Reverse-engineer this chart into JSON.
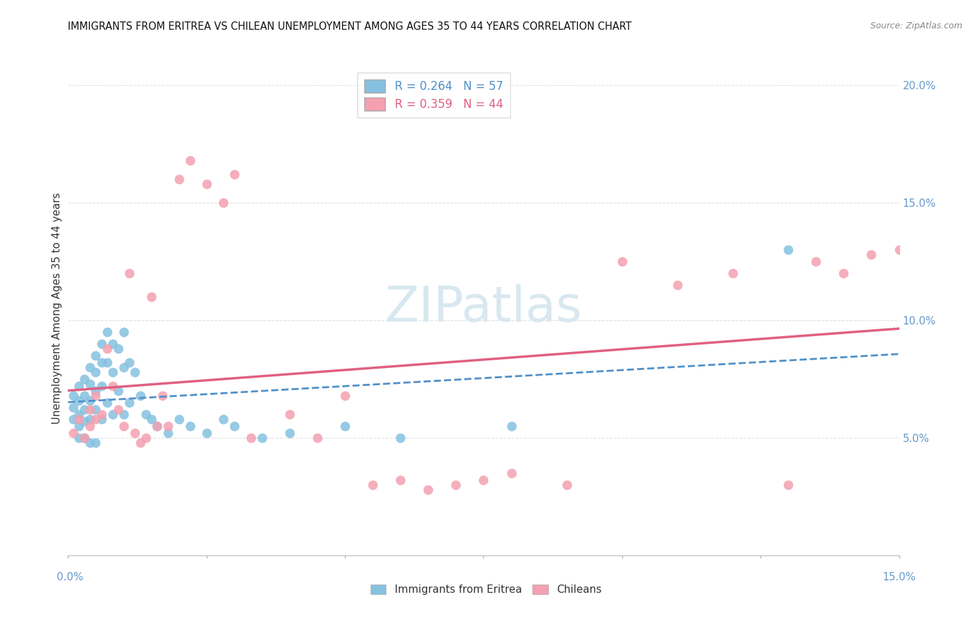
{
  "title": "IMMIGRANTS FROM ERITREA VS CHILEAN UNEMPLOYMENT AMONG AGES 35 TO 44 YEARS CORRELATION CHART",
  "source": "Source: ZipAtlas.com",
  "ylabel": "Unemployment Among Ages 35 to 44 years",
  "legend_label1": "Immigrants from Eritrea",
  "legend_label2": "Chileans",
  "r1": "0.264",
  "n1": "57",
  "r2": "0.359",
  "n2": "44",
  "color_blue": "#85c1e0",
  "color_pink": "#f4a0b0",
  "color_blue_line": "#5090c8",
  "color_pink_line": "#e06080",
  "color_grid": "#e0e0e8",
  "color_right_ticks": "#6699cc",
  "color_title": "#111111",
  "color_source": "#888888",
  "watermark_color": "#d8e8f0",
  "watermark_text": "ZIPatlas",
  "xlim": [
    0.0,
    0.15
  ],
  "ylim": [
    0.0,
    0.21
  ],
  "yticks": [
    0.05,
    0.1,
    0.15,
    0.2
  ],
  "ytick_labels": [
    "5.0%",
    "10.0%",
    "15.0%",
    "20.0%"
  ],
  "xtick_positions": [
    0.0,
    0.025,
    0.05,
    0.075,
    0.1,
    0.125,
    0.15
  ],
  "eritrea_x": [
    0.001,
    0.001,
    0.001,
    0.002,
    0.002,
    0.002,
    0.002,
    0.002,
    0.003,
    0.003,
    0.003,
    0.003,
    0.003,
    0.004,
    0.004,
    0.004,
    0.004,
    0.004,
    0.005,
    0.005,
    0.005,
    0.005,
    0.005,
    0.006,
    0.006,
    0.006,
    0.006,
    0.007,
    0.007,
    0.007,
    0.008,
    0.008,
    0.008,
    0.009,
    0.009,
    0.01,
    0.01,
    0.01,
    0.011,
    0.011,
    0.012,
    0.013,
    0.014,
    0.015,
    0.016,
    0.018,
    0.02,
    0.022,
    0.025,
    0.028,
    0.03,
    0.035,
    0.04,
    0.05,
    0.06,
    0.08,
    0.13
  ],
  "eritrea_y": [
    0.068,
    0.063,
    0.058,
    0.072,
    0.066,
    0.06,
    0.055,
    0.05,
    0.075,
    0.068,
    0.062,
    0.057,
    0.05,
    0.08,
    0.073,
    0.066,
    0.058,
    0.048,
    0.085,
    0.078,
    0.07,
    0.062,
    0.048,
    0.09,
    0.082,
    0.072,
    0.058,
    0.095,
    0.082,
    0.065,
    0.09,
    0.078,
    0.06,
    0.088,
    0.07,
    0.095,
    0.08,
    0.06,
    0.082,
    0.065,
    0.078,
    0.068,
    0.06,
    0.058,
    0.055,
    0.052,
    0.058,
    0.055,
    0.052,
    0.058,
    0.055,
    0.05,
    0.052,
    0.055,
    0.05,
    0.055,
    0.13
  ],
  "chilean_x": [
    0.001,
    0.002,
    0.003,
    0.004,
    0.004,
    0.005,
    0.005,
    0.006,
    0.007,
    0.008,
    0.009,
    0.01,
    0.011,
    0.012,
    0.013,
    0.014,
    0.015,
    0.016,
    0.017,
    0.018,
    0.02,
    0.022,
    0.025,
    0.028,
    0.03,
    0.033,
    0.04,
    0.045,
    0.05,
    0.055,
    0.06,
    0.065,
    0.07,
    0.075,
    0.08,
    0.09,
    0.1,
    0.11,
    0.12,
    0.13,
    0.135,
    0.14,
    0.145,
    0.15
  ],
  "chilean_y": [
    0.052,
    0.058,
    0.05,
    0.062,
    0.055,
    0.068,
    0.058,
    0.06,
    0.088,
    0.072,
    0.062,
    0.055,
    0.12,
    0.052,
    0.048,
    0.05,
    0.11,
    0.055,
    0.068,
    0.055,
    0.16,
    0.168,
    0.158,
    0.15,
    0.162,
    0.05,
    0.06,
    0.05,
    0.068,
    0.03,
    0.032,
    0.028,
    0.03,
    0.032,
    0.035,
    0.03,
    0.125,
    0.115,
    0.12,
    0.03,
    0.125,
    0.12,
    0.128,
    0.13
  ]
}
